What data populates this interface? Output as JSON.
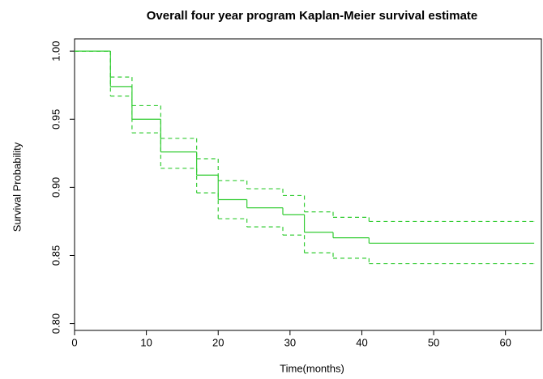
{
  "chart_data": {
    "type": "step",
    "title": "Overall four year program Kaplan-Meier survival estimate",
    "x_label": "Time(months)",
    "y_label": "Survival Probability",
    "x": [
      0,
      5,
      8,
      12,
      17,
      20,
      24,
      29,
      32,
      36,
      41,
      64
    ],
    "series": [
      {
        "color": "#33cc33",
        "line_style": "solid",
        "values": [
          1.0,
          0.974,
          0.95,
          0.926,
          0.909,
          0.891,
          0.885,
          0.88,
          0.867,
          0.863,
          0.859,
          0.859
        ]
      },
      {
        "color": "#33cc33",
        "line_style": "dashed",
        "values": [
          1.0,
          0.981,
          0.96,
          0.936,
          0.921,
          0.905,
          0.899,
          0.894,
          0.882,
          0.878,
          0.875,
          0.875
        ]
      },
      {
        "color": "#33cc33",
        "line_style": "dashed",
        "values": [
          1.0,
          0.967,
          0.94,
          0.914,
          0.896,
          0.877,
          0.871,
          0.865,
          0.852,
          0.848,
          0.844,
          0.844
        ]
      }
    ],
    "xlim": [
      0,
      65
    ],
    "ylim": [
      0.795,
      1.009
    ],
    "xticks": [
      0,
      10,
      20,
      30,
      40,
      50,
      60
    ],
    "yticks": [
      {
        "value": 0.8,
        "label": "0.80"
      },
      {
        "value": 0.85,
        "label": "0.85"
      },
      {
        "value": 0.9,
        "label": "0.90"
      },
      {
        "value": 0.95,
        "label": "0.95"
      },
      {
        "value": 1.0,
        "label": "1.00"
      }
    ]
  }
}
